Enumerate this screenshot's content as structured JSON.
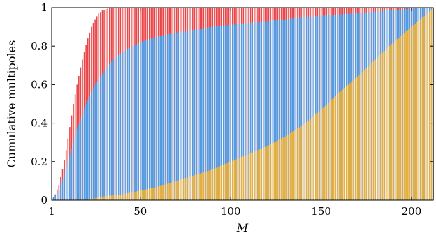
{
  "chart_data": {
    "type": "bar",
    "stacked_overlay": true,
    "xlabel": "M",
    "ylabel": "Cumulative multipoles",
    "xlim": [
      1,
      212
    ],
    "ylim": [
      0,
      1
    ],
    "xticks": [
      1,
      50,
      100,
      150,
      200
    ],
    "yticks": [
      0,
      0.2,
      0.4,
      0.6,
      0.8,
      1
    ],
    "ytick_labels": [
      "0",
      "0.2",
      "0.4",
      "0.6",
      "0.8",
      "1"
    ],
    "grid": false,
    "colors": {
      "red": "#e8474a",
      "blue": "#4c9de6",
      "yellow": "#e6b13a"
    },
    "series": [
      {
        "color": "red",
        "x": [
          1,
          3,
          5,
          7,
          9,
          11,
          13,
          15,
          17,
          19,
          21,
          23,
          25,
          27,
          29,
          31,
          33,
          35,
          40,
          50,
          100,
          150,
          212
        ],
        "values": [
          0.0,
          0.03,
          0.08,
          0.16,
          0.26,
          0.38,
          0.5,
          0.6,
          0.69,
          0.77,
          0.84,
          0.9,
          0.94,
          0.97,
          0.985,
          0.993,
          0.998,
          1.0,
          1.0,
          1.0,
          1.0,
          1.0,
          1.0
        ]
      },
      {
        "color": "blue",
        "x": [
          1,
          5,
          10,
          15,
          20,
          25,
          30,
          35,
          40,
          50,
          60,
          70,
          80,
          90,
          100,
          120,
          140,
          160,
          180,
          200,
          212
        ],
        "values": [
          0.0,
          0.05,
          0.2,
          0.37,
          0.5,
          0.6,
          0.67,
          0.73,
          0.77,
          0.82,
          0.85,
          0.87,
          0.885,
          0.9,
          0.91,
          0.93,
          0.95,
          0.965,
          0.98,
          0.995,
          1.0
        ]
      },
      {
        "color": "yellow",
        "x": [
          1,
          20,
          25,
          30,
          40,
          50,
          60,
          70,
          80,
          90,
          100,
          110,
          120,
          130,
          140,
          150,
          160,
          170,
          180,
          190,
          200,
          205,
          210,
          212
        ],
        "values": [
          0.0,
          0.0,
          0.01,
          0.02,
          0.03,
          0.05,
          0.07,
          0.1,
          0.13,
          0.16,
          0.2,
          0.24,
          0.28,
          0.33,
          0.39,
          0.47,
          0.56,
          0.64,
          0.73,
          0.82,
          0.9,
          0.94,
          0.98,
          1.0
        ]
      }
    ]
  }
}
